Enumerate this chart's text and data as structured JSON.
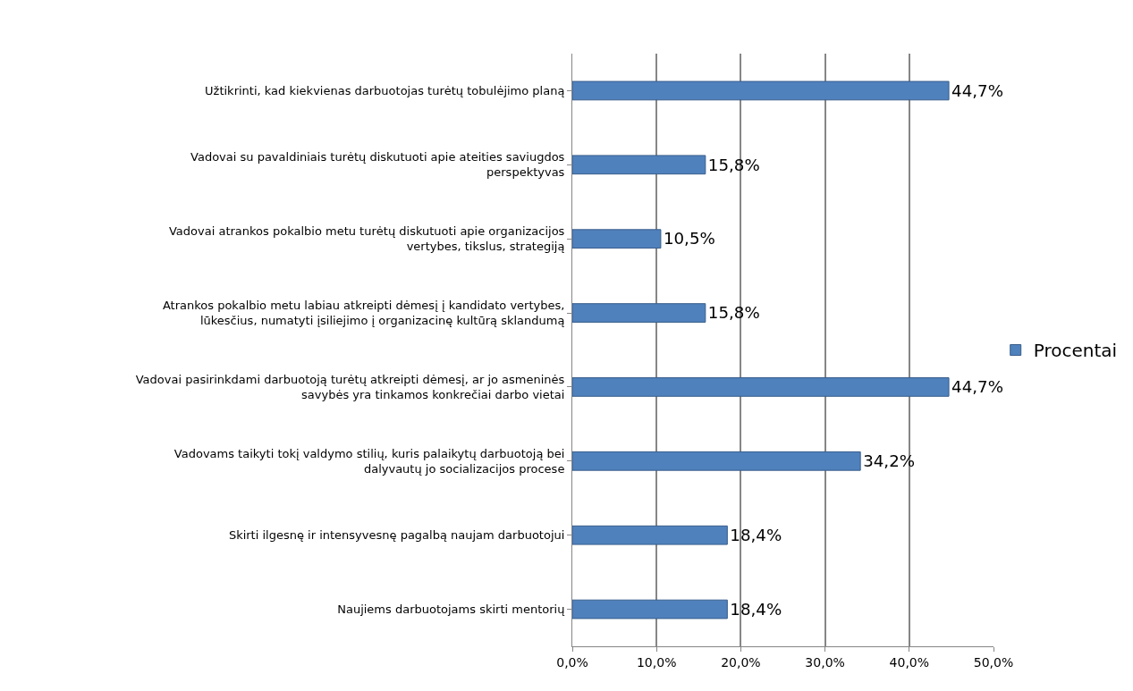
{
  "chart_data": {
    "type": "bar",
    "orientation": "horizontal",
    "categories": [
      "Užtikrinti, kad kiekvienas darbuotojas turėtų tobulėjimo planą",
      "Vadovai su pavaldiniais turėtų diskutuoti apie ateities saviugdos perspektyvas",
      "Vadovai atrankos pokalbio metu turėtų diskutuoti apie organizacijos vertybes, tikslus, strategiją",
      "Atrankos pokalbio metu labiau atkreipti dėmesį į kandidato vertybes, lūkesčius, numatyti įsiliejimo į organizacinę kultūrą sklandumą",
      "Vadovai pasirinkdami darbuotoją turėtų atkreipti dėmesį, ar jo asmeninės savybės yra tinkamos konkrečiai darbo vietai",
      "Vadovams taikyti tokį valdymo stilių, kuris palaikytų darbuotoją bei dalyvautų jo socializacijos procese",
      "Skirti ilgesnę ir intensyvesnę pagalbą naujam darbuotojui",
      "Naujiems darbuotojams skirti mentorių"
    ],
    "series": [
      {
        "name": "Procentai",
        "color": "#4f81bd",
        "values": [
          44.7,
          15.8,
          10.5,
          15.8,
          44.7,
          34.2,
          18.4,
          18.4
        ],
        "value_labels": [
          "44,7%",
          "15,8%",
          "10,5%",
          "15,8%",
          "44,7%",
          "34,2%",
          "18,4%",
          "18,4%"
        ]
      }
    ],
    "xlim": [
      0,
      50
    ],
    "xticks": [
      {
        "value": 0,
        "label": "0,0%"
      },
      {
        "value": 10,
        "label": "10,0%"
      },
      {
        "value": 20,
        "label": "20,0%"
      },
      {
        "value": 30,
        "label": "30,0%"
      },
      {
        "value": 40,
        "label": "40,0%"
      },
      {
        "value": 50,
        "label": "50,0%"
      }
    ],
    "grid": "x",
    "legend": "right"
  }
}
